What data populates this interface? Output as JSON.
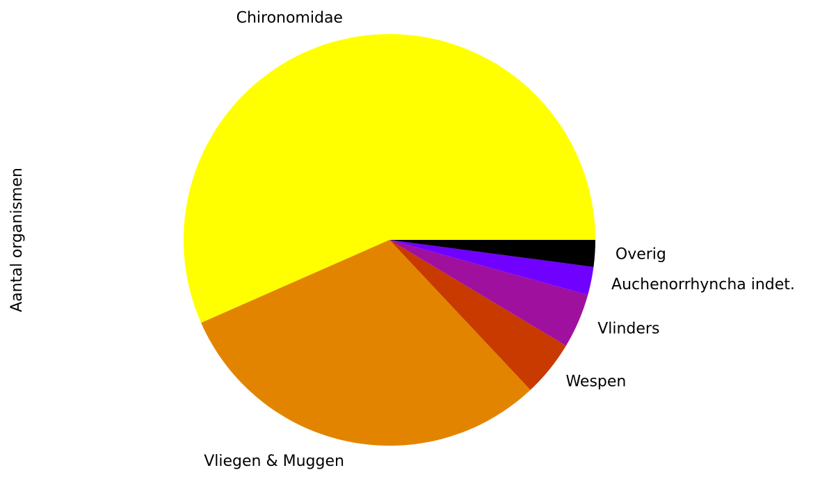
{
  "chart_data": {
    "type": "pie",
    "ylabel": "Aantal organismen",
    "categories": [
      "Chironomidae",
      "Vliegen & Muggen",
      "Wespen",
      "Vlinders",
      "Auchenorrhyncha indet.",
      "Overig"
    ],
    "values": [
      56.6,
      30.4,
      4.4,
      4.3,
      2.2,
      2.1
    ],
    "colors": [
      "#ffff00",
      "#e38400",
      "#c83a00",
      "#a0109f",
      "#7000ff",
      "#000000"
    ],
    "startangle": 0,
    "counterclock": true
  }
}
